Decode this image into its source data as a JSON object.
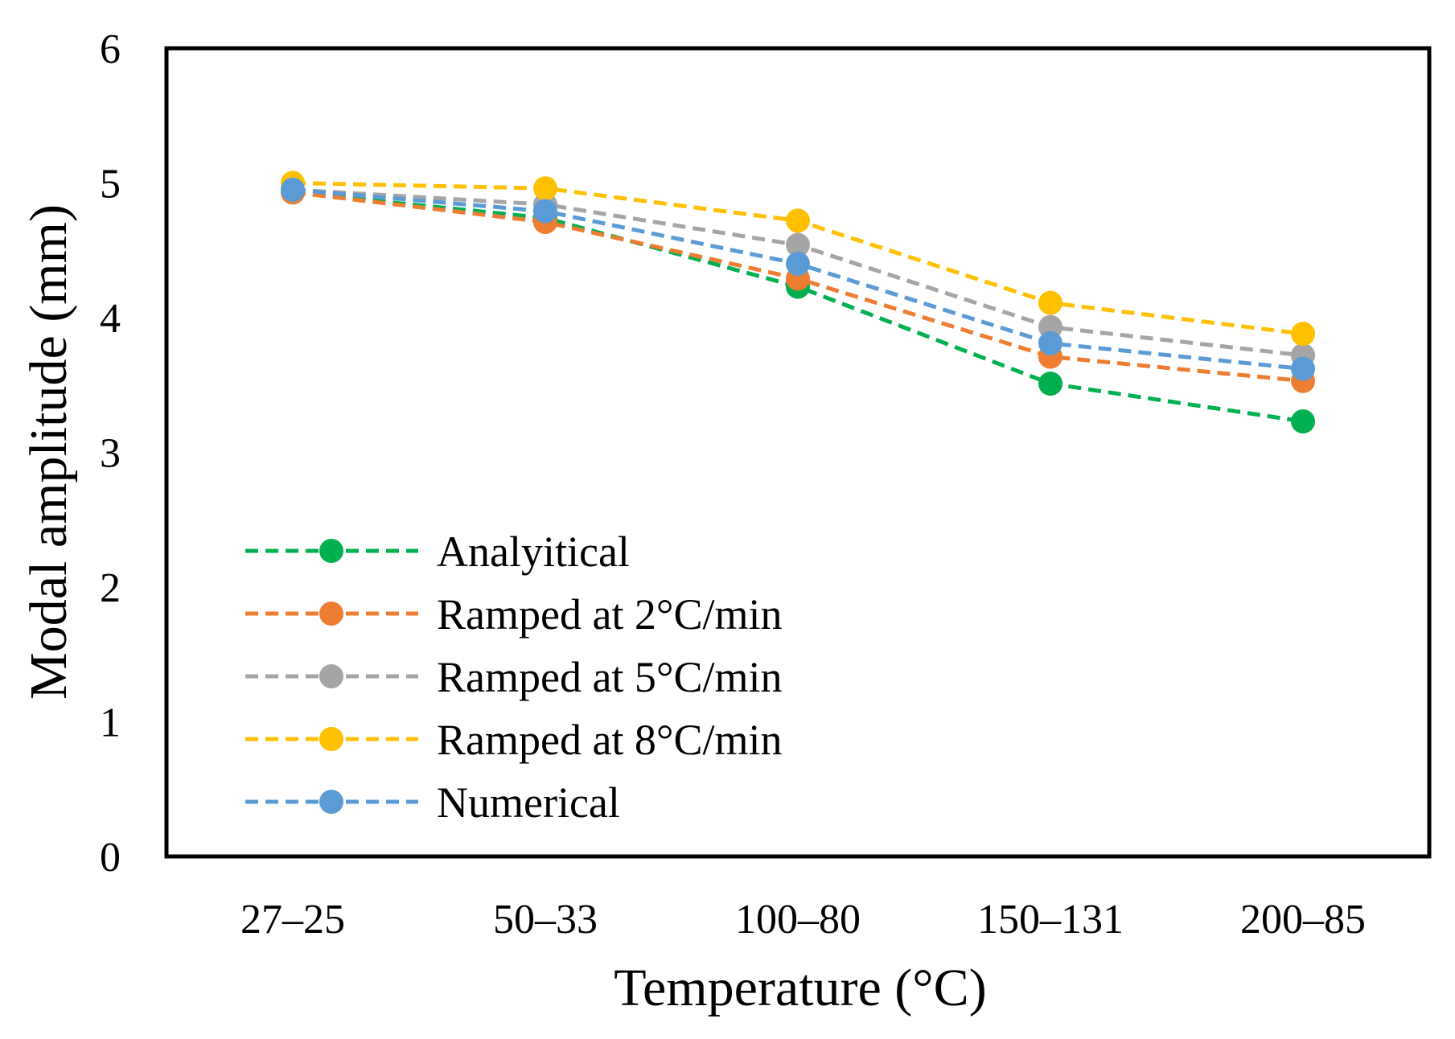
{
  "chart_data": {
    "type": "line",
    "title": "",
    "xlabel": "Temperature (°C)",
    "ylabel": "Modal amplitude (mm)",
    "categories": [
      "27–25",
      "50–33",
      "100–80",
      "150–131",
      "200–85"
    ],
    "ylim": [
      0,
      6
    ],
    "yticks": [
      "0",
      "1",
      "2",
      "3",
      "4",
      "5",
      "6"
    ],
    "grid": false,
    "legend_position": "bottom-left",
    "line_style": "dashed",
    "series": [
      {
        "name": "Analyitical",
        "color": "#00B050",
        "values": [
          4.93,
          4.74,
          4.23,
          3.51,
          3.23
        ]
      },
      {
        "name": "Ramped at 2°C/min",
        "color": "#ED7D31",
        "values": [
          4.93,
          4.71,
          4.29,
          3.71,
          3.53
        ]
      },
      {
        "name": "Ramped at 5°C/min",
        "color": "#A5A5A5",
        "values": [
          4.95,
          4.84,
          4.54,
          3.93,
          3.72
        ]
      },
      {
        "name": "Ramped at 8°C/min",
        "color": "#FFC000",
        "values": [
          5.0,
          4.96,
          4.72,
          4.11,
          3.88
        ]
      },
      {
        "name": "Numerical",
        "color": "#5B9BD5",
        "values": [
          4.95,
          4.79,
          4.4,
          3.81,
          3.62
        ]
      }
    ]
  }
}
